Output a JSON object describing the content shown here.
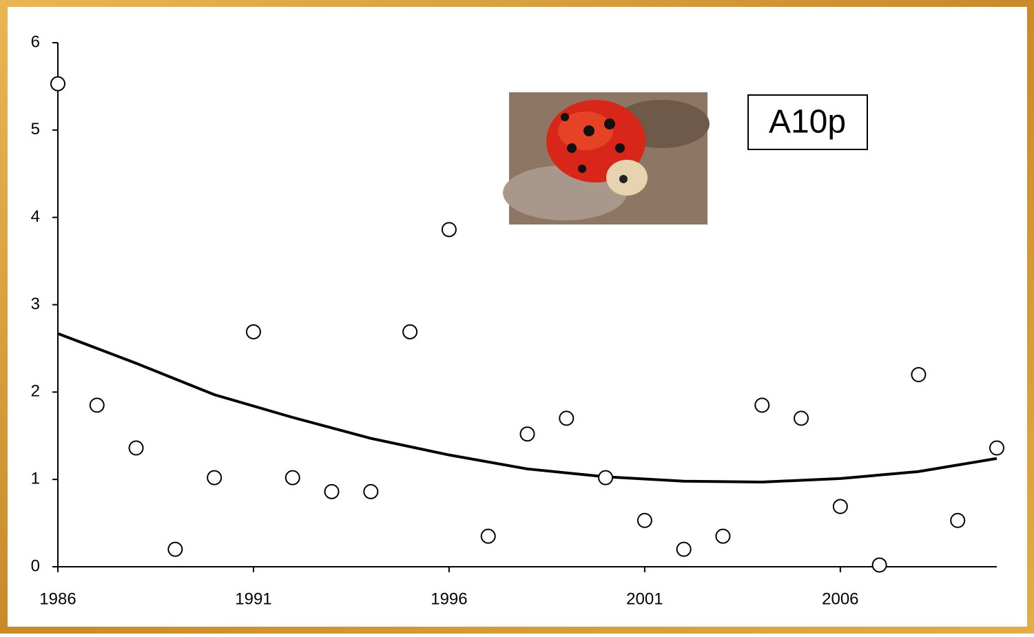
{
  "chart_data": {
    "type": "scatter",
    "annotation": "A10p",
    "x": [
      1986,
      1987,
      1988,
      1989,
      1990,
      1991,
      1992,
      1993,
      1994,
      1995,
      1996,
      1997,
      1998,
      1999,
      2000,
      2001,
      2002,
      2003,
      2004,
      2005,
      2006,
      2007,
      2008,
      2009,
      2010
    ],
    "values": [
      5.53,
      1.85,
      1.36,
      0.2,
      1.02,
      2.69,
      1.02,
      0.86,
      0.86,
      2.69,
      3.86,
      0.35,
      1.52,
      1.7,
      1.02,
      0.53,
      0.2,
      0.35,
      1.85,
      1.7,
      0.69,
      0.02,
      2.2,
      0.53,
      1.36
    ],
    "color": "#000000",
    "trend": {
      "type": "line",
      "color": "#000000",
      "x": [
        1986,
        1988,
        1990,
        1992,
        1994,
        1996,
        1998,
        2000,
        2002,
        2004,
        2006,
        2008,
        2010
      ],
      "values": [
        2.67,
        2.33,
        1.97,
        1.71,
        1.47,
        1.28,
        1.12,
        1.03,
        0.98,
        0.97,
        1.01,
        1.09,
        1.24
      ]
    },
    "xlim": [
      1986,
      2010
    ],
    "ylim": [
      0,
      6
    ],
    "xticks": [
      1986,
      1991,
      1996,
      2001,
      2006
    ],
    "yticks": [
      0,
      1,
      2,
      3,
      4,
      5,
      6
    ]
  }
}
